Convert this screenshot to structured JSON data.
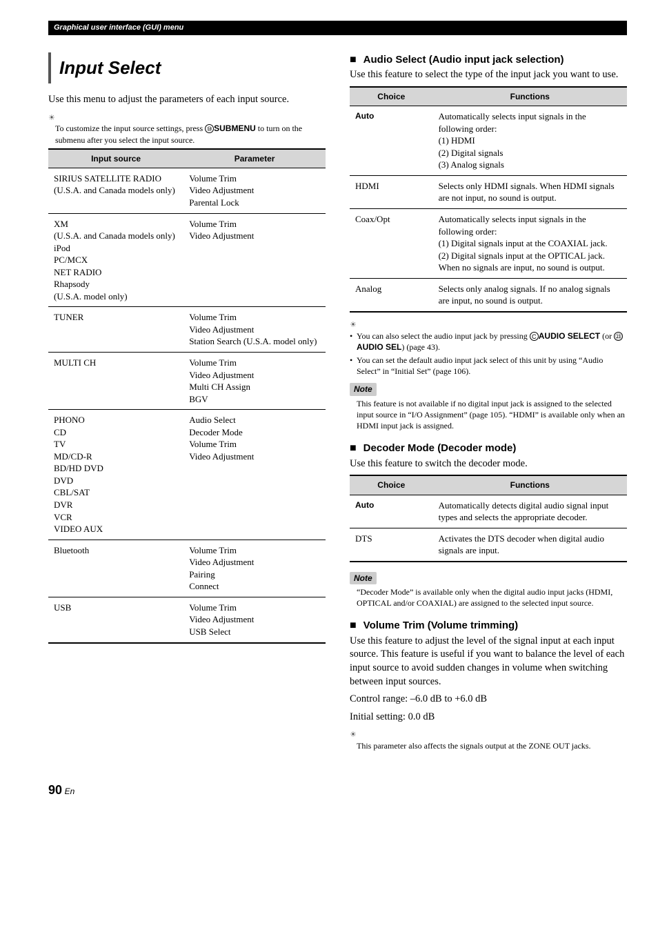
{
  "header_bar": "Graphical user interface (GUI) menu",
  "main_title": "Input Select",
  "intro_text": "Use this menu to adjust the parameters of each input source.",
  "customize_tip_pre": "To customize the input source settings, press ",
  "customize_button": "SUBMENU",
  "customize_tip_post": " to turn on the submenu after you select the input source.",
  "circ_submenu": "⑳",
  "input_table": {
    "headers": [
      "Input source",
      "Parameter"
    ],
    "rows": [
      {
        "src": "SIRIUS SATELLITE RADIO\n(U.S.A. and Canada models only)",
        "param": "Volume Trim\nVideo Adjustment\nParental Lock"
      },
      {
        "src": "XM\n(U.S.A. and Canada models only)\niPod\nPC/MCX\nNET RADIO\nRhapsody\n(U.S.A. model only)",
        "param": "Volume Trim\nVideo Adjustment"
      },
      {
        "src": "TUNER",
        "param": "Volume Trim\nVideo Adjustment\nStation Search (U.S.A. model only)"
      },
      {
        "src": "MULTI CH",
        "param": "Volume Trim\nVideo Adjustment\nMulti CH Assign\nBGV"
      },
      {
        "src": "PHONO\nCD\nTV\nMD/CD-R\nBD/HD DVD\nDVD\nCBL/SAT\nDVR\nVCR\nVIDEO AUX",
        "param": "Audio Select\nDecoder Mode\nVolume Trim\nVideo Adjustment"
      },
      {
        "src": "Bluetooth",
        "param": "Volume Trim\nVideo Adjustment\nPairing\nConnect"
      },
      {
        "src": "USB",
        "param": "Volume Trim\nVideo Adjustment\nUSB Select"
      }
    ]
  },
  "audio_select": {
    "heading": "Audio Select (Audio input jack selection)",
    "intro": "Use this feature to select the type of the input jack you want to use.",
    "headers": [
      "Choice",
      "Functions"
    ],
    "rows": [
      {
        "choice": "Auto",
        "bold": true,
        "func": "Automatically selects input signals in the following order:\n(1) HDMI\n(2) Digital signals\n(3) Analog signals"
      },
      {
        "choice": "HDMI",
        "bold": false,
        "func": "Selects only HDMI signals. When HDMI signals are not input, no sound is output."
      },
      {
        "choice": "Coax/Opt",
        "bold": false,
        "func": "Automatically selects input signals in the following order:\n(1) Digital signals input at the COAXIAL jack.\n(2) Digital signals input at the OPTICAL jack.\nWhen no signals are input, no sound is output."
      },
      {
        "choice": "Analog",
        "bold": false,
        "func": "Selects only analog signals. If no analog signals are input, no sound is output."
      }
    ],
    "tip1_pre": "You can also select the audio input jack by pressing ",
    "tip1_b1": "AUDIO SELECT",
    "tip1_mid": " (or ",
    "tip1_b2": "AUDIO SEL",
    "tip1_post": ") (page 43).",
    "tip2": "You can set the default audio input jack select of this unit by using “Audio Select” in “Initial Set” (page 106).",
    "note": "This feature is not available if no digital input jack is assigned to the selected input source in “I/O Assignment” (page 105). “HDMI” is available only when an HDMI input jack is assigned."
  },
  "decoder": {
    "heading": "Decoder Mode (Decoder mode)",
    "intro": "Use this feature to switch the decoder mode.",
    "headers": [
      "Choice",
      "Functions"
    ],
    "rows": [
      {
        "choice": "Auto",
        "bold": true,
        "func": "Automatically detects digital audio signal input types and selects the appropriate decoder."
      },
      {
        "choice": "DTS",
        "bold": false,
        "func": "Activates the DTS decoder when digital audio signals are input."
      }
    ],
    "note": "“Decoder Mode” is available only when the digital audio input jacks (HDMI, OPTICAL and/or COAXIAL) are assigned to the selected input source."
  },
  "volume_trim": {
    "heading": "Volume Trim (Volume trimming)",
    "intro": "Use this feature to adjust the level of the signal input at each input source. This feature is useful if you want to balance the level of each input source to avoid sudden changes in volume when switching between input sources.",
    "range": "Control range: –6.0 dB to +6.0 dB",
    "initial": "Initial setting: 0.0 dB",
    "tip": "This parameter also affects the signals output at the ZONE OUT jacks."
  },
  "note_label": "Note",
  "footer": {
    "page": "90",
    "lang": "En"
  }
}
